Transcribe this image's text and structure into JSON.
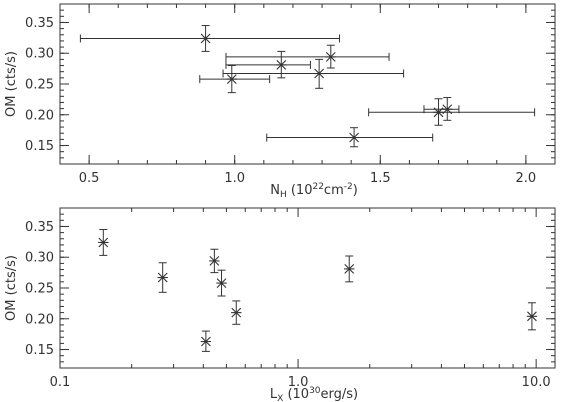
{
  "chart_data": [
    {
      "type": "scatter",
      "title": "",
      "xlabel": {
        "base": "N",
        "sub": "H",
        "unit_open": " (10",
        "unit_sup": "22",
        "unit_close": "cm",
        "unit_sup2": "-2",
        "unit_end": ")"
      },
      "ylabel": "OM (cts/s)",
      "xscale": "linear",
      "xlim": [
        0.4,
        2.1
      ],
      "ylim": [
        0.12,
        0.38
      ],
      "xticks": [
        0.5,
        1.0,
        1.5,
        2.0
      ],
      "xtick_labels": [
        "0.5",
        "1.0",
        "1.5",
        "2.0"
      ],
      "yticks": [
        0.15,
        0.2,
        0.25,
        0.3,
        0.35
      ],
      "ytick_labels": [
        "0.15",
        "0.20",
        "0.25",
        "0.30",
        "0.35"
      ],
      "points": [
        {
          "x": 0.9,
          "y": 0.324,
          "xlo": 0.47,
          "xhi": 1.36,
          "ylo": 0.303,
          "yhi": 0.345
        },
        {
          "x": 0.99,
          "y": 0.258,
          "xlo": 0.88,
          "xhi": 1.12,
          "ylo": 0.236,
          "yhi": 0.28
        },
        {
          "x": 1.16,
          "y": 0.281,
          "xlo": 0.97,
          "xhi": 1.26,
          "ylo": 0.26,
          "yhi": 0.303
        },
        {
          "x": 1.29,
          "y": 0.267,
          "xlo": 0.96,
          "xhi": 1.58,
          "ylo": 0.243,
          "yhi": 0.29
        },
        {
          "x": 1.33,
          "y": 0.294,
          "xlo": 0.97,
          "xhi": 1.53,
          "ylo": 0.276,
          "yhi": 0.313
        },
        {
          "x": 1.41,
          "y": 0.163,
          "xlo": 1.11,
          "xhi": 1.68,
          "ylo": 0.148,
          "yhi": 0.179
        },
        {
          "x": 1.7,
          "y": 0.204,
          "xlo": 1.46,
          "xhi": 2.03,
          "ylo": 0.183,
          "yhi": 0.226
        },
        {
          "x": 1.73,
          "y": 0.209,
          "xlo": 1.65,
          "xhi": 1.77,
          "ylo": 0.191,
          "yhi": 0.228
        }
      ]
    },
    {
      "type": "scatter",
      "title": "",
      "xlabel": {
        "base": "L",
        "sub": "X",
        "unit_open": " (10",
        "unit_sup": "30",
        "unit_close": "erg/s)"
      },
      "ylabel": "OM (cts/s)",
      "xscale": "log",
      "xlim": [
        0.1,
        12.0
      ],
      "ylim": [
        0.12,
        0.38
      ],
      "xticks": [
        0.1,
        1.0,
        10.0
      ],
      "xtick_labels": [
        "0.1",
        "1.0",
        "10.0"
      ],
      "yticks": [
        0.15,
        0.2,
        0.25,
        0.3,
        0.35
      ],
      "ytick_labels": [
        "0.15",
        "0.20",
        "0.25",
        "0.30",
        "0.35"
      ],
      "points": [
        {
          "x": 0.152,
          "y": 0.324,
          "ylo": 0.303,
          "yhi": 0.345
        },
        {
          "x": 0.27,
          "y": 0.267,
          "ylo": 0.243,
          "yhi": 0.291
        },
        {
          "x": 0.41,
          "y": 0.163,
          "ylo": 0.147,
          "yhi": 0.18
        },
        {
          "x": 0.445,
          "y": 0.294,
          "ylo": 0.275,
          "yhi": 0.313
        },
        {
          "x": 0.477,
          "y": 0.258,
          "ylo": 0.237,
          "yhi": 0.279
        },
        {
          "x": 0.55,
          "y": 0.21,
          "ylo": 0.191,
          "yhi": 0.229
        },
        {
          "x": 1.64,
          "y": 0.281,
          "ylo": 0.26,
          "yhi": 0.302
        },
        {
          "x": 9.6,
          "y": 0.204,
          "ylo": 0.182,
          "yhi": 0.226
        }
      ]
    }
  ]
}
